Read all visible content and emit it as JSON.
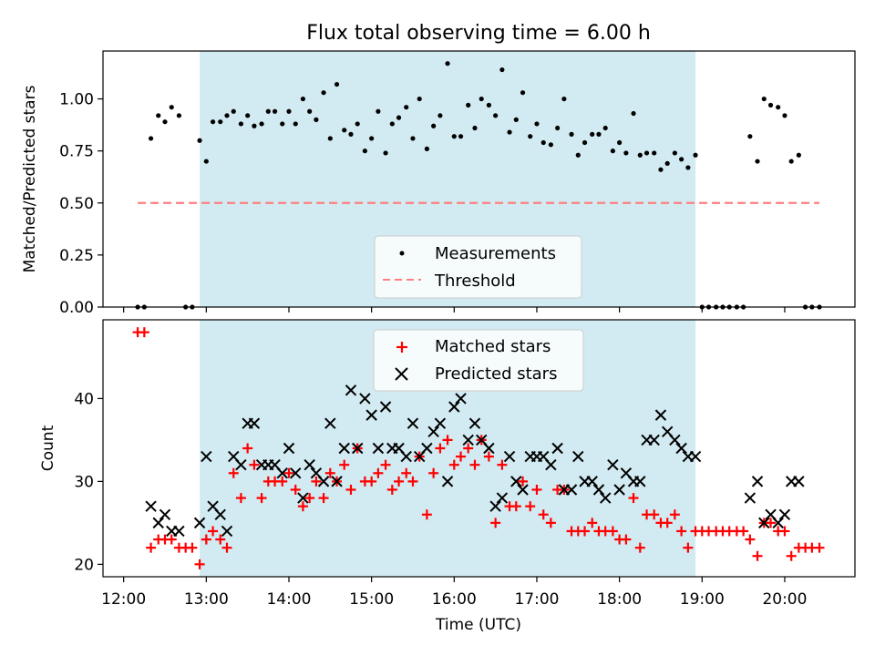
{
  "chart_data": {
    "title": "Flux total observing time = 6.00 h",
    "xlabel": "Time (UTC)",
    "x_unit": "hours UTC",
    "xlim": [
      11.75,
      20.85
    ],
    "x_ticks": [
      12,
      13,
      14,
      15,
      16,
      17,
      18,
      19,
      20
    ],
    "x_tick_labels": [
      "12:00",
      "13:00",
      "14:00",
      "15:00",
      "16:00",
      "17:00",
      "18:00",
      "19:00",
      "20:00"
    ],
    "shaded_span": [
      12.92,
      18.92
    ],
    "shade_color": "#add8e6",
    "panels": [
      {
        "type": "scatter",
        "ylabel": "Matched/Predicted stars",
        "ylim": [
          0.0,
          1.23
        ],
        "y_ticks": [
          0.0,
          0.25,
          0.5,
          0.75,
          1.0
        ],
        "y_tick_labels": [
          "0.00",
          "0.25",
          "0.50",
          "0.75",
          "1.00"
        ],
        "legend": {
          "placement": "lower-center",
          "entries": [
            "Measurements",
            "Threshold"
          ]
        },
        "threshold": {
          "name": "Threshold",
          "y": 0.5,
          "x_range": [
            12.17,
            20.42
          ],
          "color": "#ff7f7f",
          "style": "dashed"
        },
        "series": [
          {
            "name": "Measurements",
            "color": "#000000",
            "marker": "dot",
            "x": [
              12.17,
              12.25,
              12.33,
              12.42,
              12.5,
              12.58,
              12.67,
              12.75,
              12.83,
              12.92,
              13.0,
              13.08,
              13.17,
              13.25,
              13.33,
              13.42,
              13.5,
              13.58,
              13.67,
              13.75,
              13.83,
              13.92,
              14.0,
              14.08,
              14.17,
              14.25,
              14.33,
              14.42,
              14.5,
              14.58,
              14.67,
              14.75,
              14.83,
              14.92,
              15.0,
              15.08,
              15.17,
              15.25,
              15.33,
              15.42,
              15.5,
              15.58,
              15.67,
              15.75,
              15.83,
              15.92,
              16.0,
              16.08,
              16.17,
              16.25,
              16.33,
              16.42,
              16.5,
              16.58,
              16.67,
              16.75,
              16.83,
              16.92,
              17.0,
              17.08,
              17.17,
              17.25,
              17.33,
              17.42,
              17.5,
              17.58,
              17.67,
              17.75,
              17.83,
              17.92,
              18.0,
              18.08,
              18.17,
              18.25,
              18.33,
              18.42,
              18.5,
              18.58,
              18.67,
              18.75,
              18.83,
              18.92,
              19.0,
              19.08,
              19.17,
              19.25,
              19.33,
              19.42,
              19.5,
              19.58,
              19.67,
              19.75,
              19.83,
              19.92,
              20.0,
              20.08,
              20.17,
              20.25,
              20.33,
              20.42
            ],
            "y": [
              0.0,
              0.0,
              0.81,
              0.92,
              0.89,
              0.96,
              0.92,
              0.0,
              0.0,
              0.8,
              0.7,
              0.89,
              0.89,
              0.92,
              0.94,
              0.88,
              0.92,
              0.87,
              0.88,
              0.94,
              0.94,
              0.88,
              0.94,
              0.88,
              1.0,
              0.94,
              0.9,
              1.03,
              0.81,
              1.07,
              0.85,
              0.83,
              0.88,
              0.75,
              0.81,
              0.94,
              0.74,
              0.88,
              0.91,
              0.96,
              0.81,
              1.0,
              0.76,
              0.87,
              0.92,
              1.17,
              0.82,
              0.82,
              0.97,
              0.86,
              1.0,
              0.97,
              0.92,
              1.14,
              0.84,
              0.9,
              1.03,
              0.82,
              0.88,
              0.79,
              0.78,
              0.86,
              1.0,
              0.83,
              0.73,
              0.79,
              0.83,
              0.83,
              0.86,
              0.75,
              0.79,
              0.74,
              0.93,
              0.73,
              0.74,
              0.74,
              0.66,
              0.69,
              0.74,
              0.71,
              0.67,
              0.73,
              0.0,
              0.0,
              0.0,
              0.0,
              0.0,
              0.0,
              0.0,
              0.82,
              0.7,
              1.0,
              0.97,
              0.96,
              0.92,
              0.7,
              0.73,
              0.0,
              0.0,
              0.0
            ]
          }
        ]
      },
      {
        "type": "scatter",
        "ylabel": "Count",
        "ylim": [
          18.5,
          49.5
        ],
        "y_ticks": [
          20,
          30,
          40
        ],
        "y_tick_labels": [
          "20",
          "30",
          "40"
        ],
        "legend": {
          "placement": "upper-center",
          "entries": [
            "Matched stars",
            "Predicted stars"
          ]
        },
        "series": [
          {
            "name": "Matched stars",
            "color": "#ff0000",
            "marker": "plus",
            "x": [
              12.17,
              12.25,
              12.33,
              12.42,
              12.5,
              12.58,
              12.67,
              12.75,
              12.83,
              12.92,
              13.0,
              13.08,
              13.17,
              13.25,
              13.33,
              13.42,
              13.5,
              13.58,
              13.67,
              13.75,
              13.83,
              13.92,
              14.0,
              14.08,
              14.17,
              14.25,
              14.33,
              14.42,
              14.5,
              14.58,
              14.67,
              14.75,
              14.83,
              14.92,
              15.0,
              15.08,
              15.17,
              15.25,
              15.33,
              15.42,
              15.5,
              15.58,
              15.67,
              15.75,
              15.83,
              15.92,
              16.0,
              16.08,
              16.17,
              16.25,
              16.33,
              16.42,
              16.5,
              16.58,
              16.67,
              16.75,
              16.83,
              16.92,
              17.0,
              17.08,
              17.17,
              17.25,
              17.33,
              17.42,
              17.5,
              17.58,
              17.67,
              17.75,
              17.83,
              17.92,
              18.0,
              18.08,
              18.17,
              18.25,
              18.33,
              18.42,
              18.5,
              18.58,
              18.67,
              18.75,
              18.83,
              18.92,
              19.0,
              19.08,
              19.17,
              19.25,
              19.33,
              19.42,
              19.5,
              19.58,
              19.67,
              19.75,
              19.83,
              19.92,
              20.0,
              20.08,
              20.17,
              20.25,
              20.33,
              20.42
            ],
            "y": [
              48,
              48,
              22,
              23,
              23,
              23,
              22,
              22,
              22,
              20,
              23,
              24,
              23,
              22,
              31,
              28,
              34,
              32,
              28,
              30,
              30,
              30,
              31,
              29,
              27,
              28,
              30,
              28,
              31,
              30,
              32,
              29,
              34,
              30,
              30,
              31,
              32,
              29,
              30,
              31,
              30,
              33,
              26,
              31,
              34,
              35,
              32,
              33,
              34,
              32,
              35,
              33,
              25,
              32,
              27,
              27,
              30,
              27,
              29,
              26,
              25,
              29,
              29,
              24,
              24,
              24,
              25,
              24,
              24,
              24,
              23,
              23,
              28,
              22,
              26,
              26,
              25,
              25,
              26,
              24,
              22,
              24,
              24,
              24,
              24,
              24,
              24,
              24,
              24,
              23,
              21,
              25,
              25,
              24,
              24,
              21,
              22,
              22,
              22,
              22
            ]
          },
          {
            "name": "Predicted stars",
            "color": "#000000",
            "marker": "x",
            "x": [
              12.33,
              12.42,
              12.5,
              12.58,
              12.67,
              12.92,
              13.0,
              13.08,
              13.17,
              13.25,
              13.33,
              13.42,
              13.5,
              13.58,
              13.67,
              13.75,
              13.83,
              13.92,
              14.0,
              14.08,
              14.17,
              14.25,
              14.33,
              14.42,
              14.5,
              14.58,
              14.67,
              14.75,
              14.83,
              14.92,
              15.0,
              15.08,
              15.17,
              15.25,
              15.33,
              15.42,
              15.5,
              15.58,
              15.67,
              15.75,
              15.83,
              15.92,
              16.0,
              16.08,
              16.17,
              16.25,
              16.33,
              16.42,
              16.5,
              16.58,
              16.67,
              16.75,
              16.83,
              16.92,
              17.0,
              17.08,
              17.17,
              17.25,
              17.33,
              17.42,
              17.5,
              17.58,
              17.67,
              17.75,
              17.83,
              17.92,
              18.0,
              18.08,
              18.17,
              18.25,
              18.33,
              18.42,
              18.5,
              18.58,
              18.67,
              18.75,
              18.83,
              18.92,
              19.58,
              19.67,
              19.75,
              19.83,
              19.92,
              20.0,
              20.08,
              20.17
            ],
            "y": [
              27,
              25,
              26,
              24,
              24,
              25,
              33,
              27,
              26,
              24,
              33,
              32,
              37,
              37,
              32,
              32,
              32,
              31,
              34,
              31,
              28,
              32,
              31,
              30,
              37,
              30,
              34,
              41,
              34,
              40,
              38,
              34,
              39,
              34,
              34,
              33,
              37,
              33,
              34,
              36,
              37,
              30,
              39,
              40,
              35,
              37,
              35,
              34,
              27,
              28,
              33,
              30,
              29,
              33,
              33,
              33,
              32,
              34,
              29,
              29,
              33,
              30,
              30,
              29,
              28,
              32,
              29,
              31,
              30,
              30,
              35,
              35,
              38,
              36,
              35,
              34,
              33,
              33,
              28,
              30,
              25,
              26,
              25,
              26,
              30,
              30
            ]
          }
        ]
      }
    ]
  }
}
